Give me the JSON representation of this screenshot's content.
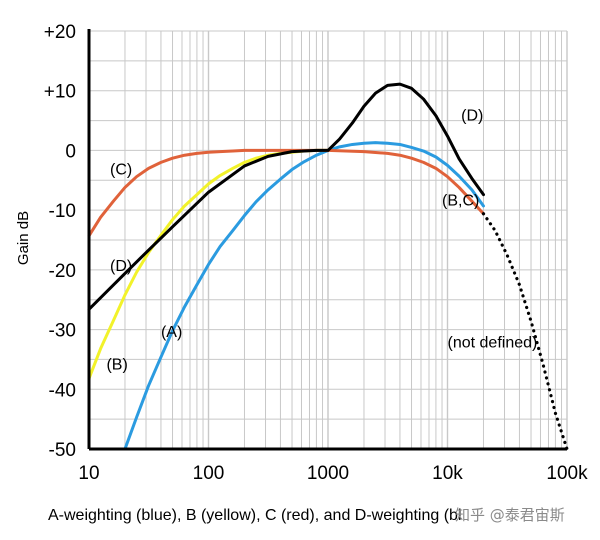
{
  "chart_data": {
    "type": "line",
    "title": "",
    "xlabel": "A-weighting (blue), B (yellow), C (red), and D-weighting (bl",
    "ylabel": "Gain dB",
    "xscale": "log",
    "xlim": [
      10,
      100000
    ],
    "ylim": [
      -50,
      20
    ],
    "grid": true,
    "x_ticks": [
      "10",
      "100",
      "1000",
      "10k",
      "100k"
    ],
    "y_ticks": [
      "+20",
      "+10",
      "0",
      "-10",
      "-20",
      "-30",
      "-40",
      "-50"
    ],
    "series": [
      {
        "name": "(A)",
        "color": "#2b9be0",
        "points": [
          [
            20,
            -50
          ],
          [
            25,
            -44.7
          ],
          [
            31.5,
            -39.4
          ],
          [
            40,
            -34.6
          ],
          [
            50,
            -30.2
          ],
          [
            63,
            -26.2
          ],
          [
            80,
            -22.5
          ],
          [
            100,
            -19.1
          ],
          [
            125,
            -16.1
          ],
          [
            160,
            -13.4
          ],
          [
            200,
            -10.9
          ],
          [
            250,
            -8.6
          ],
          [
            315,
            -6.6
          ],
          [
            400,
            -4.8
          ],
          [
            500,
            -3.2
          ],
          [
            630,
            -1.9
          ],
          [
            800,
            -0.8
          ],
          [
            1000,
            0
          ],
          [
            1250,
            0.6
          ],
          [
            1600,
            1.0
          ],
          [
            2000,
            1.2
          ],
          [
            2500,
            1.3
          ],
          [
            3150,
            1.2
          ],
          [
            4000,
            1.0
          ],
          [
            5000,
            0.5
          ],
          [
            6300,
            -0.1
          ],
          [
            8000,
            -1.1
          ],
          [
            10000,
            -2.5
          ],
          [
            12500,
            -4.3
          ],
          [
            16000,
            -6.6
          ],
          [
            20000,
            -9.3
          ]
        ]
      },
      {
        "name": "(B)",
        "color": "#f2f22a",
        "points": [
          [
            10,
            -38.2
          ],
          [
            12.5,
            -33.2
          ],
          [
            16,
            -28.5
          ],
          [
            20,
            -24.2
          ],
          [
            25,
            -20.4
          ],
          [
            31.5,
            -17.1
          ],
          [
            40,
            -14.2
          ],
          [
            50,
            -11.6
          ],
          [
            63,
            -9.3
          ],
          [
            80,
            -7.4
          ],
          [
            100,
            -5.6
          ],
          [
            125,
            -4.2
          ],
          [
            160,
            -3.0
          ],
          [
            200,
            -2.0
          ],
          [
            250,
            -1.3
          ],
          [
            315,
            -0.8
          ],
          [
            400,
            -0.5
          ],
          [
            500,
            -0.3
          ],
          [
            630,
            -0.1
          ],
          [
            800,
            0
          ],
          [
            1000,
            0
          ]
        ]
      },
      {
        "name": "(C)",
        "color": "#e0623a",
        "points": [
          [
            10,
            -14.3
          ],
          [
            12.5,
            -11.2
          ],
          [
            16,
            -8.5
          ],
          [
            20,
            -6.2
          ],
          [
            25,
            -4.4
          ],
          [
            31.5,
            -3.0
          ],
          [
            40,
            -2.0
          ],
          [
            50,
            -1.3
          ],
          [
            63,
            -0.8
          ],
          [
            80,
            -0.5
          ],
          [
            100,
            -0.3
          ],
          [
            125,
            -0.2
          ],
          [
            160,
            -0.1
          ],
          [
            200,
            0
          ],
          [
            1000,
            0
          ],
          [
            2000,
            -0.2
          ],
          [
            3150,
            -0.5
          ],
          [
            4000,
            -0.8
          ],
          [
            5000,
            -1.3
          ],
          [
            6300,
            -2.0
          ],
          [
            8000,
            -3.0
          ],
          [
            10000,
            -4.4
          ],
          [
            12500,
            -6.2
          ],
          [
            16000,
            -8.5
          ],
          [
            20000,
            -10.6
          ]
        ]
      },
      {
        "name": "(D)",
        "color": "#000000",
        "points": [
          [
            10,
            -26.6
          ],
          [
            20,
            -20.6
          ],
          [
            31.5,
            -16.7
          ],
          [
            50,
            -12.8
          ],
          [
            100,
            -7.0
          ],
          [
            200,
            -2.6
          ],
          [
            315,
            -1.0
          ],
          [
            500,
            -0.2
          ],
          [
            800,
            0
          ],
          [
            1000,
            0
          ],
          [
            1250,
            1.9
          ],
          [
            1600,
            4.6
          ],
          [
            2000,
            7.4
          ],
          [
            2500,
            9.6
          ],
          [
            3150,
            10.9
          ],
          [
            4000,
            11.1
          ],
          [
            5000,
            10.4
          ],
          [
            6300,
            8.6
          ],
          [
            8000,
            5.8
          ],
          [
            10000,
            2.4
          ],
          [
            12500,
            -1.4
          ],
          [
            16000,
            -4.7
          ],
          [
            20000,
            -7.4
          ]
        ]
      },
      {
        "name": "(not defined)",
        "color": "#000000",
        "dotted": true,
        "points": [
          [
            20000,
            -10.6
          ],
          [
            25000,
            -13.4
          ],
          [
            31500,
            -17.5
          ],
          [
            40000,
            -22.5
          ],
          [
            50000,
            -28.6
          ],
          [
            63000,
            -35.8
          ],
          [
            80000,
            -44.0
          ],
          [
            100000,
            -50
          ]
        ]
      }
    ],
    "annotations": [
      {
        "text": "(C)",
        "x": 15,
        "y": -3
      },
      {
        "text": "(D)",
        "x": 15,
        "y": -19.2
      },
      {
        "text": "(B)",
        "x": 14,
        "y": -35.7
      },
      {
        "text": "(A)",
        "x": 40,
        "y": -30.2
      },
      {
        "text": "(D)",
        "x": 13000,
        "y": 6
      },
      {
        "text": "(B,C)",
        "x": 9000,
        "y": -8.2
      },
      {
        "text": "(not defined)",
        "x": 10000,
        "y": -32
      }
    ]
  },
  "watermark": "知乎 @泰君宙斯"
}
